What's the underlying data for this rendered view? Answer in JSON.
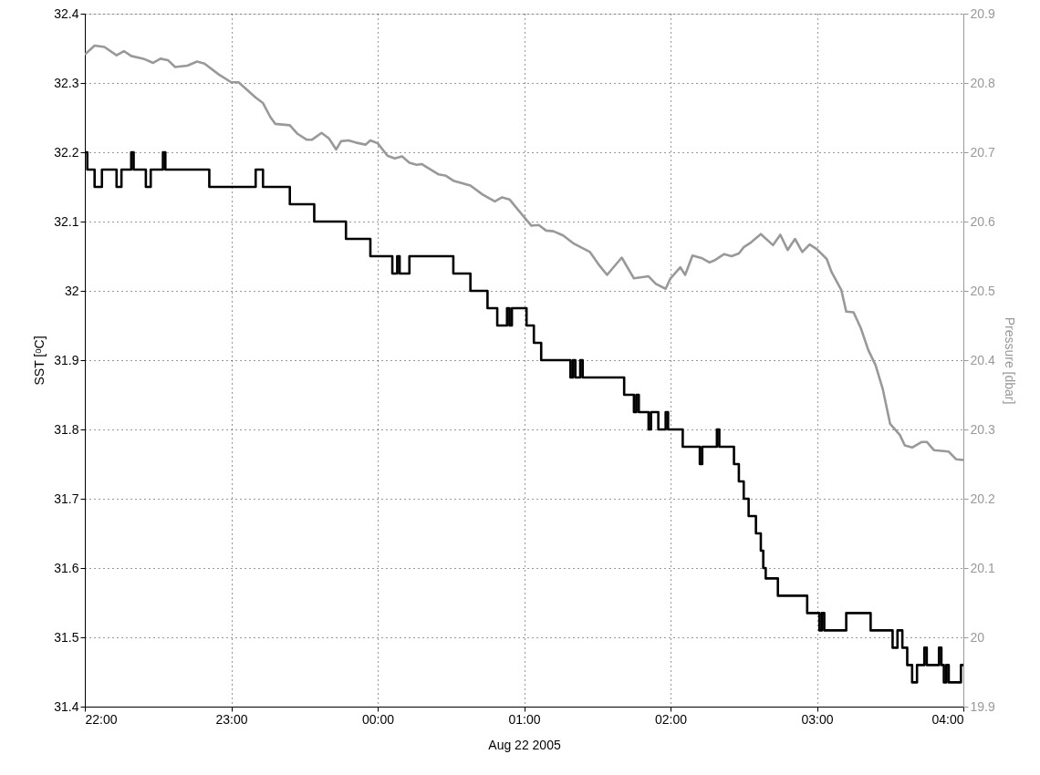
{
  "chart_data": {
    "type": "line",
    "xlabel": "Aug 22 2005",
    "ylabel": "SST [ᵒC]",
    "y2label": "Pressure [dbar]",
    "xlim": [
      "2005-08-21T22:00",
      "2005-08-22T04:00"
    ],
    "xticks": [
      {
        "value": "2005-08-21T22:00",
        "label": "22:00"
      },
      {
        "value": "2005-08-21T23:00",
        "label": "23:00"
      },
      {
        "value": "2005-08-22T00:00",
        "label": "00:00"
      },
      {
        "value": "2005-08-22T01:00",
        "label": "01:00"
      },
      {
        "value": "2005-08-22T02:00",
        "label": "02:00"
      },
      {
        "value": "2005-08-22T03:00",
        "label": "03:00"
      },
      {
        "value": "2005-08-22T04:00",
        "label": "04:00"
      }
    ],
    "ylim": [
      31.4,
      32.4
    ],
    "yticks": [
      31.4,
      31.5,
      31.6,
      31.7,
      31.8,
      31.9,
      32,
      32.1,
      32.2,
      32.3,
      32.4
    ],
    "y2lim": [
      19.9,
      20.9
    ],
    "y2ticks": [
      19.9,
      20,
      20.1,
      20.2,
      20.3,
      20.4,
      20.5,
      20.6,
      20.7,
      20.8,
      20.9
    ],
    "grid": true,
    "series": [
      {
        "type": "step",
        "color": "#000000",
        "x": [
          "2005-08-21T22:00",
          "2005-08-21T22:01",
          "2005-08-21T22:04",
          "2005-08-21T22:07",
          "2005-08-21T22:13",
          "2005-08-21T22:15",
          "2005-08-21T22:19",
          "2005-08-21T22:20",
          "2005-08-21T22:25",
          "2005-08-21T22:27",
          "2005-08-21T22:32",
          "2005-08-21T22:33",
          "2005-08-21T22:51",
          "2005-08-21T23:10",
          "2005-08-21T23:13",
          "2005-08-21T23:24",
          "2005-08-21T23:34",
          "2005-08-21T23:47",
          "2005-08-21T23:57",
          "2005-08-22T00:06",
          "2005-08-22T00:08",
          "2005-08-22T00:09",
          "2005-08-22T00:13",
          "2005-08-22T00:31",
          "2005-08-22T00:38",
          "2005-08-22T00:45",
          "2005-08-22T00:49",
          "2005-08-22T00:53",
          "2005-08-22T00:54",
          "2005-08-22T00:55",
          "2005-08-22T01:01",
          "2005-08-22T01:04",
          "2005-08-22T01:07",
          "2005-08-22T01:19",
          "2005-08-22T01:20",
          "2005-08-22T01:21",
          "2005-08-22T01:23",
          "2005-08-22T01:24",
          "2005-08-22T01:41",
          "2005-08-22T01:45",
          "2005-08-22T01:46",
          "2005-08-22T01:47",
          "2005-08-22T01:51",
          "2005-08-22T01:52",
          "2005-08-22T01:55",
          "2005-08-22T01:58",
          "2005-08-22T01:59",
          "2005-08-22T02:05",
          "2005-08-22T02:12",
          "2005-08-22T02:13",
          "2005-08-22T02:19",
          "2005-08-22T02:20",
          "2005-08-22T02:26",
          "2005-08-22T02:28",
          "2005-08-22T02:30",
          "2005-08-22T02:32",
          "2005-08-22T02:35",
          "2005-08-22T02:37",
          "2005-08-22T02:38",
          "2005-08-22T02:39",
          "2005-08-22T02:44",
          "2005-08-22T02:56",
          "2005-08-22T03:01",
          "2005-08-22T03:02",
          "2005-08-22T03:03",
          "2005-08-22T03:12",
          "2005-08-22T03:22",
          "2005-08-22T03:31",
          "2005-08-22T03:33",
          "2005-08-22T03:35",
          "2005-08-22T03:37",
          "2005-08-22T03:39",
          "2005-08-22T03:41",
          "2005-08-22T03:44",
          "2005-08-22T03:45",
          "2005-08-22T03:50",
          "2005-08-22T03:51",
          "2005-08-22T03:52",
          "2005-08-22T03:53",
          "2005-08-22T03:54",
          "2005-08-22T03:59",
          "2005-08-22T04:00"
        ],
        "values": [
          32.2,
          32.175,
          32.15,
          32.175,
          32.15,
          32.175,
          32.2,
          32.175,
          32.15,
          32.175,
          32.2,
          32.175,
          32.15,
          32.175,
          32.15,
          32.125,
          32.1,
          32.075,
          32.05,
          32.025,
          32.05,
          32.025,
          32.05,
          32.025,
          32.0,
          31.975,
          31.95,
          31.975,
          31.95,
          31.975,
          31.95,
          31.925,
          31.9,
          31.875,
          31.9,
          31.875,
          31.9,
          31.875,
          31.85,
          31.825,
          31.85,
          31.825,
          31.8,
          31.825,
          31.8,
          31.825,
          31.8,
          31.775,
          31.75,
          31.775,
          31.8,
          31.775,
          31.75,
          31.725,
          31.7,
          31.675,
          31.65,
          31.625,
          31.6,
          31.585,
          31.56,
          31.535,
          31.51,
          31.535,
          31.51,
          31.535,
          31.51,
          31.485,
          31.51,
          31.485,
          31.46,
          31.435,
          31.46,
          31.485,
          31.46,
          31.485,
          31.46,
          31.435,
          31.46,
          31.435,
          31.46,
          31.46
        ]
      },
      {
        "color": "#999999",
        "axis": "y2",
        "x": [
          "2005-08-21T22:00",
          "2005-08-21T22:04",
          "2005-08-21T22:08",
          "2005-08-21T22:13",
          "2005-08-21T22:16",
          "2005-08-21T22:19",
          "2005-08-21T22:24",
          "2005-08-21T22:28",
          "2005-08-21T22:31",
          "2005-08-21T22:34",
          "2005-08-21T22:37",
          "2005-08-21T22:42",
          "2005-08-21T22:46",
          "2005-08-21T22:49",
          "2005-08-21T22:55",
          "2005-08-21T23:00",
          "2005-08-21T23:03",
          "2005-08-21T23:10",
          "2005-08-21T23:13",
          "2005-08-21T23:16",
          "2005-08-21T23:18",
          "2005-08-21T23:24",
          "2005-08-21T23:27",
          "2005-08-21T23:31",
          "2005-08-21T23:33",
          "2005-08-21T23:37",
          "2005-08-21T23:40",
          "2005-08-21T23:43",
          "2005-08-21T23:45",
          "2005-08-21T23:48",
          "2005-08-21T23:51",
          "2005-08-21T23:55",
          "2005-08-21T23:57",
          "2005-08-22T00:00",
          "2005-08-22T00:04",
          "2005-08-22T00:07",
          "2005-08-22T00:10",
          "2005-08-22T00:13",
          "2005-08-22T00:16",
          "2005-08-22T00:18",
          "2005-08-22T00:25",
          "2005-08-22T00:28",
          "2005-08-22T00:31",
          "2005-08-22T00:38",
          "2005-08-22T00:43",
          "2005-08-22T00:48",
          "2005-08-22T00:51",
          "2005-08-22T00:54",
          "2005-08-22T00:58",
          "2005-08-22T01:03",
          "2005-08-22T01:06",
          "2005-08-22T01:09",
          "2005-08-22T01:12",
          "2005-08-22T01:16",
          "2005-08-22T01:20",
          "2005-08-22T01:27",
          "2005-08-22T01:31",
          "2005-08-22T01:34",
          "2005-08-22T01:40",
          "2005-08-22T01:45",
          "2005-08-22T01:51",
          "2005-08-22T01:54",
          "2005-08-22T01:58",
          "2005-08-22T02:00",
          "2005-08-22T02:04",
          "2005-08-22T02:06",
          "2005-08-22T02:09",
          "2005-08-22T02:13",
          "2005-08-22T02:16",
          "2005-08-22T02:18",
          "2005-08-22T02:22",
          "2005-08-22T02:25",
          "2005-08-22T02:28",
          "2005-08-22T02:30",
          "2005-08-22T02:33",
          "2005-08-22T02:37",
          "2005-08-22T02:42",
          "2005-08-22T02:45",
          "2005-08-22T02:48",
          "2005-08-22T02:51",
          "2005-08-22T02:54",
          "2005-08-22T02:57",
          "2005-08-22T03:00",
          "2005-08-22T03:04",
          "2005-08-22T03:06",
          "2005-08-22T03:10",
          "2005-08-22T03:12",
          "2005-08-22T03:15",
          "2005-08-22T03:18",
          "2005-08-22T03:21",
          "2005-08-22T03:24",
          "2005-08-22T03:27",
          "2005-08-22T03:30",
          "2005-08-22T03:34",
          "2005-08-22T03:36",
          "2005-08-22T03:39",
          "2005-08-22T03:43",
          "2005-08-22T03:45",
          "2005-08-22T03:48",
          "2005-08-22T03:54",
          "2005-08-22T03:57",
          "2005-08-22T04:00"
        ],
        "values": [
          20.841,
          20.854,
          20.852,
          20.84,
          20.846,
          20.839,
          20.835,
          20.829,
          20.835,
          20.833,
          20.823,
          20.825,
          20.831,
          20.828,
          20.812,
          20.801,
          20.801,
          20.779,
          20.771,
          20.751,
          20.741,
          20.739,
          20.727,
          20.718,
          20.718,
          20.728,
          20.72,
          20.704,
          20.716,
          20.717,
          20.714,
          20.711,
          20.717,
          20.713,
          20.695,
          20.691,
          20.694,
          20.685,
          20.682,
          20.683,
          20.668,
          20.666,
          20.659,
          20.652,
          20.639,
          20.629,
          20.635,
          20.632,
          20.615,
          20.594,
          20.595,
          20.587,
          20.586,
          20.58,
          20.569,
          20.556,
          20.536,
          20.523,
          20.548,
          20.518,
          20.521,
          20.51,
          20.503,
          20.518,
          20.534,
          20.523,
          20.551,
          20.547,
          20.541,
          20.544,
          20.553,
          20.55,
          20.554,
          20.563,
          20.57,
          20.582,
          20.566,
          20.581,
          20.559,
          20.575,
          20.556,
          20.567,
          20.56,
          20.546,
          20.527,
          20.501,
          20.47,
          20.469,
          20.446,
          20.415,
          20.393,
          20.358,
          20.308,
          20.292,
          20.277,
          20.274,
          20.282,
          20.282,
          20.27,
          20.268,
          20.257,
          20.256
        ]
      }
    ]
  }
}
